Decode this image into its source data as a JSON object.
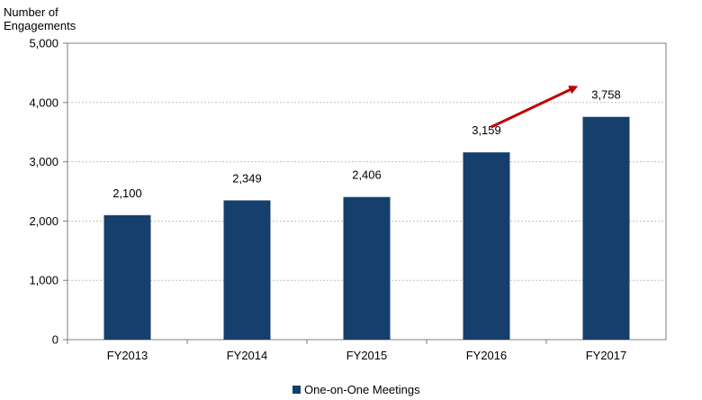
{
  "chart_data": {
    "type": "bar",
    "ylabel_lines": [
      "Number of",
      "Engagements"
    ],
    "categories": [
      "FY2013",
      "FY2014",
      "FY2015",
      "FY2016",
      "FY2017"
    ],
    "series": [
      {
        "name": "One-on-One Meetings",
        "values": [
          2100,
          2349,
          2406,
          3159,
          3758
        ],
        "color": "#163f6b"
      }
    ],
    "data_labels": [
      "2,100",
      "2,349",
      "2,406",
      "3,159",
      "3,758"
    ],
    "yticks": [
      0,
      1000,
      2000,
      3000,
      4000,
      5000
    ],
    "ytick_labels": [
      "0",
      "1,000",
      "2,000",
      "3,000",
      "4,000",
      "5,000"
    ],
    "ylim": [
      0,
      5000
    ],
    "grid": true,
    "legend_position": "bottom",
    "annotation": {
      "type": "arrow",
      "from_category": "FY2016",
      "to_category": "FY2017",
      "color": "#c00000"
    }
  }
}
